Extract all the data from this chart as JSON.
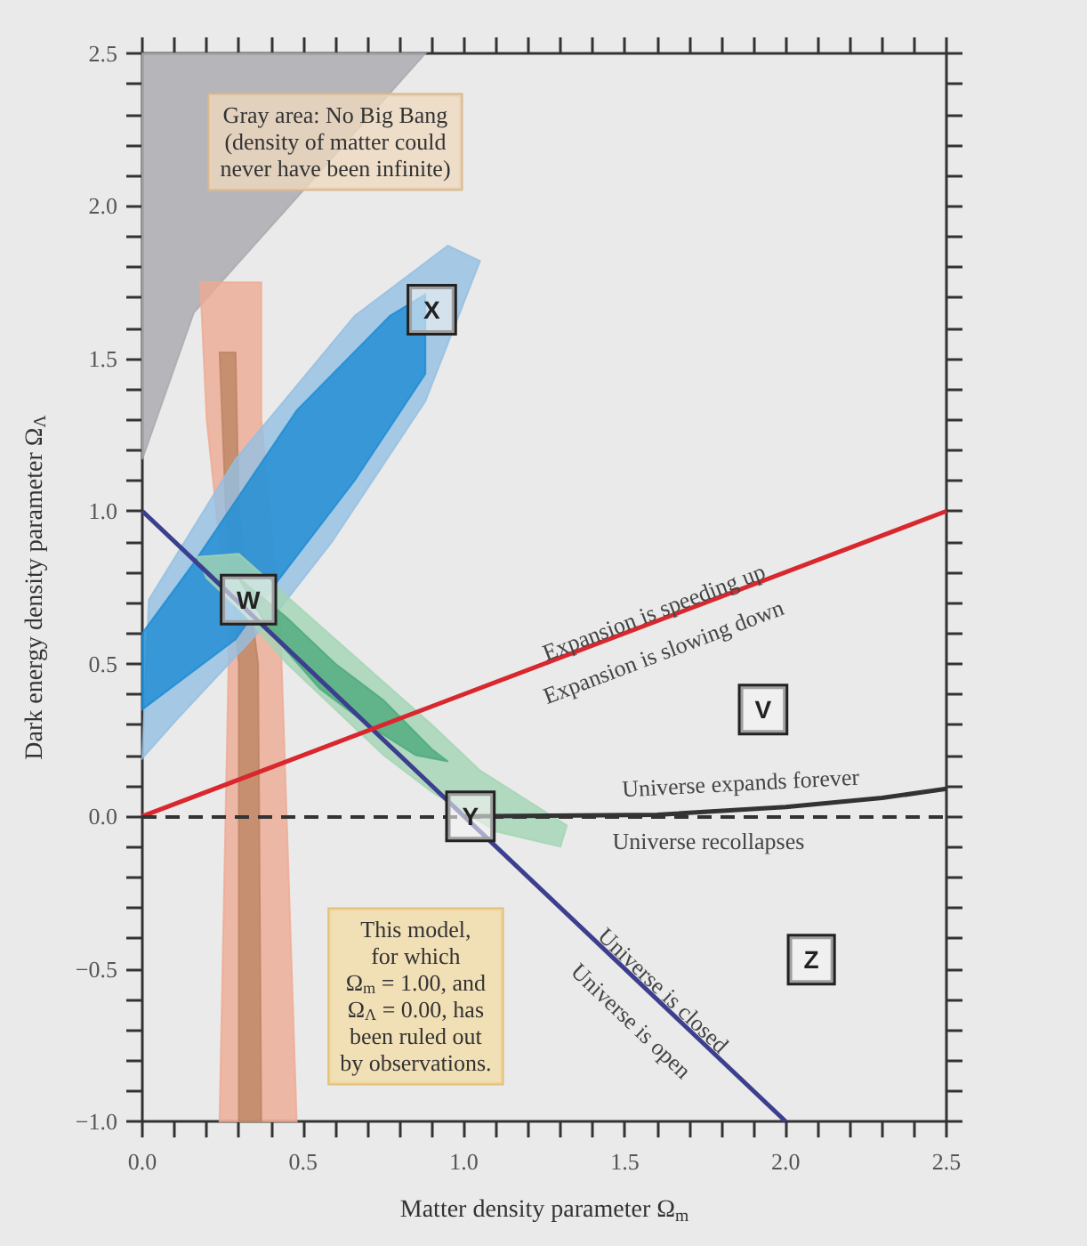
{
  "chart_data": {
    "type": "line",
    "xlabel": "Matter density parameter Ω$_{m}$",
    "ylabel": "Dark energy density parameter Ω$_{Λ}$",
    "xlim": [
      0,
      2.5
    ],
    "ylim": [
      -1,
      2.5
    ],
    "xticks": [
      {
        "value": 0,
        "label": "0.0"
      },
      {
        "value": 0.5,
        "label": "0.5"
      },
      {
        "value": 1,
        "label": "1.0"
      },
      {
        "value": 1.5,
        "label": "1.5"
      },
      {
        "value": 2,
        "label": "2.0"
      },
      {
        "value": 2.5,
        "label": "2.5"
      }
    ],
    "yticks": [
      {
        "value": -1,
        "label": "−1.0"
      },
      {
        "value": -0.5,
        "label": "−0.5"
      },
      {
        "value": 0,
        "label": "0.0"
      },
      {
        "value": 0.5,
        "label": "0.5"
      },
      {
        "value": 1,
        "label": "1.0"
      },
      {
        "value": 1.5,
        "label": "1.5"
      },
      {
        "value": 2,
        "label": "2.0"
      },
      {
        "value": 2.5,
        "label": "2.5"
      }
    ],
    "grid": false,
    "series": [
      {
        "type": "area",
        "color": "#a9a9ae",
        "x": [
          0,
          0.16,
          0.44,
          0.88,
          0
        ],
        "values": [
          1.17,
          1.65,
          1.98,
          2.5,
          2.5
        ]
      },
      {
        "type": "area",
        "color": "#eeaa94",
        "x": [
          0.24,
          0.48,
          0.43,
          0.37,
          0.37,
          0.18,
          0.2,
          0.27
        ],
        "values": [
          -1,
          -1,
          0.6,
          1.3,
          1.75,
          1.75,
          1.3,
          0.6
        ]
      },
      {
        "type": "area",
        "color": "#bb8463",
        "x": [
          0.3,
          0.37,
          0.36,
          0.3,
          0.29,
          0.24,
          0.26,
          0.3
        ],
        "values": [
          -1,
          -1,
          0.5,
          1.0,
          1.52,
          1.52,
          1.0,
          0.5
        ]
      },
      {
        "type": "area",
        "color": "#93bfe2",
        "x": [
          0,
          0.02,
          0.29,
          0.66,
          0.95,
          1.05,
          0.88,
          0.59,
          0.42,
          0.11,
          0
        ],
        "values": [
          0.19,
          0.71,
          1.17,
          1.64,
          1.87,
          1.82,
          1.36,
          0.9,
          0.67,
          0.32,
          0.19
        ]
      },
      {
        "type": "area",
        "color": "#1b8bd3",
        "x": [
          0,
          0.16,
          0.48,
          0.77,
          0.88,
          0.88,
          0.66,
          0.42,
          0.29,
          0
        ],
        "values": [
          0.6,
          0.83,
          1.33,
          1.64,
          1.71,
          1.45,
          1.1,
          0.77,
          0.58,
          0.35
        ]
      },
      {
        "type": "area",
        "color": "#a3d4b4",
        "x": [
          0.17,
          0.3,
          0.45,
          0.6,
          0.75,
          0.9,
          1.05,
          1.2,
          1.32,
          1.3,
          1.1,
          0.9,
          0.75,
          0.6,
          0.45,
          0.32,
          0.2
        ],
        "values": [
          0.85,
          0.86,
          0.72,
          0.58,
          0.44,
          0.3,
          0.15,
          0.05,
          -0.03,
          -0.1,
          -0.05,
          0.08,
          0.2,
          0.35,
          0.5,
          0.66,
          0.78
        ]
      },
      {
        "type": "area",
        "color": "#4ea97c",
        "x": [
          0.3,
          0.45,
          0.6,
          0.75,
          0.9,
          0.95,
          0.85,
          0.7,
          0.55,
          0.4
        ],
        "values": [
          0.78,
          0.65,
          0.5,
          0.38,
          0.22,
          0.18,
          0.2,
          0.3,
          0.42,
          0.6
        ]
      },
      {
        "color": "#3b3f8e",
        "x": [
          0,
          2
        ],
        "values": [
          1,
          -1
        ]
      },
      {
        "color": "#d8282e",
        "x": [
          0,
          2.5
        ],
        "values": [
          0,
          1
        ]
      },
      {
        "color": "#333333",
        "x": [
          1,
          1.6,
          2,
          2.3,
          2.5
        ],
        "values": [
          0,
          0.005,
          0.03,
          0.06,
          0.09
        ]
      }
    ],
    "ref_lines": [
      {
        "axis": "y",
        "value": 0,
        "color": "#333333",
        "line_style": "dashed"
      }
    ],
    "annotations": [
      {
        "text": "Gray area: No Big Bang\n(density of matter could\nnever have been infinite)",
        "x": 0.6,
        "y": 2.21
      },
      {
        "text": "Expansion is speeding up",
        "x": 1.59,
        "y": 0.67
      },
      "Expansion is slowing down",
      "Universe expands forever",
      "Universe recollapses",
      {
        "text": "Universe is closed",
        "x": 1.62,
        "y": -0.57
      },
      "Universe is open",
      "This model,\nfor which\nΩ$_{m}$ = 1.00, and\nΩ$_{Λ}$ = 0.00, has\nbeen ruled out\nby observations.",
      {
        "text": "X",
        "x": 0.9,
        "y": 1.66
      },
      {
        "text": "W",
        "x": 0.33,
        "y": 0.71
      },
      {
        "text": "Y",
        "x": 1.02,
        "y": 0
      },
      {
        "text": "V",
        "x": 1.93,
        "y": 0.35
      },
      {
        "text": "Z",
        "x": 2.08,
        "y": -0.47
      }
    ]
  }
}
